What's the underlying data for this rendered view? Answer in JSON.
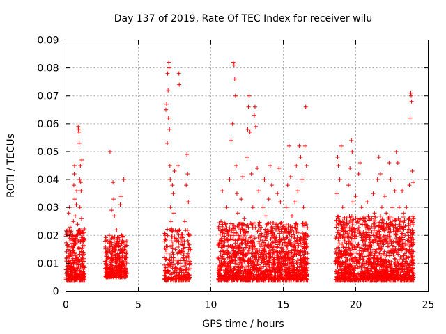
{
  "chart_data": {
    "type": "scatter",
    "title": "Day 137 of 2019, Rate Of TEC Index for receiver wilu",
    "xlabel": "GPS time / hours",
    "ylabel": "ROTI / TECUs",
    "xlim": [
      0,
      25
    ],
    "ylim": [
      0,
      0.09
    ],
    "xticks": [
      "0",
      "5",
      "10",
      "15",
      "20",
      "25"
    ],
    "yticks": [
      "0",
      "0.01",
      "0.02",
      "0.03",
      "0.04",
      "0.05",
      "0.06",
      "0.07",
      "0.08",
      "0.09"
    ],
    "grid": true,
    "marker": "+",
    "color": "#ff0000",
    "series": [
      {
        "name": "ROTI",
        "points": [
          [
            0.05,
            0.012
          ],
          [
            0.1,
            0.008
          ],
          [
            0.12,
            0.015
          ],
          [
            0.15,
            0.022
          ],
          [
            0.18,
            0.006
          ],
          [
            0.2,
            0.028
          ],
          [
            0.22,
            0.01
          ],
          [
            0.25,
            0.03
          ],
          [
            0.28,
            0.018
          ],
          [
            0.3,
            0.023
          ],
          [
            0.32,
            0.007
          ],
          [
            0.35,
            0.013
          ],
          [
            0.38,
            0.009
          ],
          [
            0.4,
            0.016
          ],
          [
            0.42,
            0.005
          ],
          [
            0.45,
            0.011
          ],
          [
            0.48,
            0.02
          ],
          [
            0.5,
            0.014
          ],
          [
            0.52,
            0.025
          ],
          [
            0.55,
            0.038
          ],
          [
            0.58,
            0.042
          ],
          [
            0.6,
            0.045
          ],
          [
            0.62,
            0.033
          ],
          [
            0.65,
            0.027
          ],
          [
            0.68,
            0.019
          ],
          [
            0.7,
            0.008
          ],
          [
            0.72,
            0.031
          ],
          [
            0.75,
            0.036
          ],
          [
            0.78,
            0.012
          ],
          [
            0.8,
            0.006
          ],
          [
            0.82,
            0.024
          ],
          [
            0.85,
            0.059
          ],
          [
            0.87,
            0.058
          ],
          [
            0.9,
            0.057
          ],
          [
            0.92,
            0.053
          ],
          [
            0.95,
            0.04
          ],
          [
            0.97,
            0.03
          ],
          [
            1.0,
            0.045
          ],
          [
            1.02,
            0.039
          ],
          [
            1.05,
            0.036
          ],
          [
            1.08,
            0.026
          ],
          [
            1.1,
            0.047
          ],
          [
            1.12,
            0.018
          ],
          [
            1.15,
            0.01
          ],
          [
            1.18,
            0.006
          ],
          [
            1.2,
            0.014
          ],
          [
            1.22,
            0.009
          ],
          [
            1.25,
            0.021
          ],
          [
            2.75,
            0.01
          ],
          [
            2.8,
            0.014
          ],
          [
            2.85,
            0.008
          ],
          [
            2.9,
            0.018
          ],
          [
            2.95,
            0.012
          ],
          [
            3.0,
            0.02
          ],
          [
            3.05,
            0.05
          ],
          [
            3.1,
            0.016
          ],
          [
            3.15,
            0.029
          ],
          [
            3.2,
            0.011
          ],
          [
            3.25,
            0.039
          ],
          [
            3.3,
            0.033
          ],
          [
            3.35,
            0.027
          ],
          [
            3.4,
            0.015
          ],
          [
            3.45,
            0.009
          ],
          [
            3.5,
            0.022
          ],
          [
            3.55,
            0.013
          ],
          [
            3.6,
            0.007
          ],
          [
            3.65,
            0.017
          ],
          [
            3.7,
            0.012
          ],
          [
            3.75,
            0.031
          ],
          [
            3.8,
            0.034
          ],
          [
            3.85,
            0.02
          ],
          [
            3.9,
            0.01
          ],
          [
            3.95,
            0.014
          ],
          [
            4.0,
            0.04
          ],
          [
            4.05,
            0.008
          ],
          [
            4.1,
            0.016
          ],
          [
            4.15,
            0.012
          ],
          [
            4.2,
            0.018
          ],
          [
            6.8,
            0.012
          ],
          [
            6.85,
            0.02
          ],
          [
            6.9,
            0.065
          ],
          [
            6.95,
            0.067
          ],
          [
            7.0,
            0.053
          ],
          [
            7.02,
            0.078
          ],
          [
            7.05,
            0.072
          ],
          [
            7.08,
            0.062
          ],
          [
            7.1,
            0.082
          ],
          [
            7.12,
            0.08
          ],
          [
            7.15,
            0.058
          ],
          [
            7.18,
            0.045
          ],
          [
            7.2,
            0.04
          ],
          [
            7.22,
            0.03
          ],
          [
            7.25,
            0.025
          ],
          [
            7.28,
            0.018
          ],
          [
            7.3,
            0.012
          ],
          [
            7.35,
            0.038
          ],
          [
            7.4,
            0.035
          ],
          [
            7.45,
            0.028
          ],
          [
            7.5,
            0.043
          ],
          [
            7.55,
            0.015
          ],
          [
            7.6,
            0.008
          ],
          [
            7.7,
            0.01
          ],
          [
            7.75,
            0.045
          ],
          [
            7.8,
            0.078
          ],
          [
            7.82,
            0.074
          ],
          [
            7.85,
            0.022
          ],
          [
            7.9,
            0.014
          ],
          [
            8.0,
            0.018
          ],
          [
            8.1,
            0.012
          ],
          [
            8.2,
            0.025
          ],
          [
            8.3,
            0.038
          ],
          [
            8.35,
            0.049
          ],
          [
            8.4,
            0.042
          ],
          [
            8.45,
            0.032
          ],
          [
            8.5,
            0.02
          ],
          [
            8.55,
            0.01
          ],
          [
            8.6,
            0.015
          ],
          [
            10.5,
            0.008
          ],
          [
            10.6,
            0.018
          ],
          [
            10.7,
            0.025
          ],
          [
            10.8,
            0.036
          ],
          [
            10.9,
            0.01
          ],
          [
            11.0,
            0.022
          ],
          [
            11.1,
            0.03
          ],
          [
            11.2,
            0.014
          ],
          [
            11.3,
            0.04
          ],
          [
            11.4,
            0.054
          ],
          [
            11.5,
            0.06
          ],
          [
            11.55,
            0.082
          ],
          [
            11.6,
            0.081
          ],
          [
            11.65,
            0.076
          ],
          [
            11.7,
            0.07
          ],
          [
            11.75,
            0.045
          ],
          [
            11.8,
            0.035
          ],
          [
            11.85,
            0.028
          ],
          [
            11.9,
            0.02
          ],
          [
            12.0,
            0.012
          ],
          [
            12.1,
            0.033
          ],
          [
            12.2,
            0.041
          ],
          [
            12.3,
            0.026
          ],
          [
            12.4,
            0.018
          ],
          [
            12.5,
            0.048
          ],
          [
            12.55,
            0.058
          ],
          [
            12.6,
            0.066
          ],
          [
            12.65,
            0.07
          ],
          [
            12.7,
            0.057
          ],
          [
            12.8,
            0.042
          ],
          [
            12.9,
            0.03
          ],
          [
            13.0,
            0.063
          ],
          [
            13.05,
            0.066
          ],
          [
            13.1,
            0.059
          ],
          [
            13.2,
            0.044
          ],
          [
            13.3,
            0.036
          ],
          [
            13.4,
            0.022
          ],
          [
            13.5,
            0.014
          ],
          [
            13.6,
            0.03
          ],
          [
            13.7,
            0.04
          ],
          [
            13.8,
            0.027
          ],
          [
            13.9,
            0.016
          ],
          [
            14.0,
            0.033
          ],
          [
            14.1,
            0.045
          ],
          [
            14.2,
            0.038
          ],
          [
            14.3,
            0.021
          ],
          [
            14.4,
            0.012
          ],
          [
            14.5,
            0.024
          ],
          [
            14.6,
            0.035
          ],
          [
            14.7,
            0.044
          ],
          [
            14.8,
            0.032
          ],
          [
            14.9,
            0.018
          ],
          [
            15.0,
            0.01
          ],
          [
            15.1,
            0.022
          ],
          [
            15.2,
            0.03
          ],
          [
            15.3,
            0.038
          ],
          [
            15.4,
            0.052
          ],
          [
            15.5,
            0.041
          ],
          [
            15.6,
            0.027
          ],
          [
            15.7,
            0.015
          ],
          [
            15.8,
            0.032
          ],
          [
            15.9,
            0.045
          ],
          [
            16.0,
            0.036
          ],
          [
            16.1,
            0.052
          ],
          [
            16.2,
            0.048
          ],
          [
            16.3,
            0.04
          ],
          [
            16.4,
            0.03
          ],
          [
            16.5,
            0.052
          ],
          [
            16.55,
            0.066
          ],
          [
            16.6,
            0.045
          ],
          [
            16.65,
            0.02
          ],
          [
            16.7,
            0.01
          ],
          [
            18.6,
            0.01
          ],
          [
            18.7,
            0.035
          ],
          [
            18.75,
            0.048
          ],
          [
            18.8,
            0.045
          ],
          [
            18.9,
            0.04
          ],
          [
            19.0,
            0.052
          ],
          [
            19.1,
            0.03
          ],
          [
            19.2,
            0.018
          ],
          [
            19.3,
            0.012
          ],
          [
            19.4,
            0.024
          ],
          [
            19.5,
            0.038
          ],
          [
            19.6,
            0.044
          ],
          [
            19.7,
            0.054
          ],
          [
            19.75,
            0.05
          ],
          [
            19.8,
            0.032
          ],
          [
            19.9,
            0.021
          ],
          [
            20.0,
            0.034
          ],
          [
            20.1,
            0.026
          ],
          [
            20.2,
            0.042
          ],
          [
            20.3,
            0.046
          ],
          [
            20.4,
            0.03
          ],
          [
            20.5,
            0.018
          ],
          [
            20.6,
            0.01
          ],
          [
            20.7,
            0.024
          ],
          [
            20.8,
            0.032
          ],
          [
            20.9,
            0.02
          ],
          [
            21.0,
            0.014
          ],
          [
            21.1,
            0.026
          ],
          [
            21.2,
            0.035
          ],
          [
            21.3,
            0.028
          ],
          [
            21.4,
            0.018
          ],
          [
            21.5,
            0.04
          ],
          [
            21.6,
            0.048
          ],
          [
            21.7,
            0.042
          ],
          [
            21.8,
            0.03
          ],
          [
            21.9,
            0.022
          ],
          [
            22.0,
            0.034
          ],
          [
            22.1,
            0.028
          ],
          [
            22.2,
            0.016
          ],
          [
            22.3,
            0.046
          ],
          [
            22.4,
            0.04
          ],
          [
            22.5,
            0.03
          ],
          [
            22.6,
            0.022
          ],
          [
            22.7,
            0.036
          ],
          [
            22.8,
            0.05
          ],
          [
            22.9,
            0.046
          ],
          [
            23.0,
            0.03
          ],
          [
            23.1,
            0.018
          ],
          [
            23.2,
            0.036
          ],
          [
            23.3,
            0.028
          ],
          [
            23.4,
            0.02
          ],
          [
            23.5,
            0.03
          ],
          [
            23.6,
            0.022
          ],
          [
            23.7,
            0.038
          ],
          [
            23.75,
            0.062
          ],
          [
            23.8,
            0.071
          ],
          [
            23.82,
            0.07
          ],
          [
            23.85,
            0.068
          ],
          [
            23.9,
            0.043
          ],
          [
            23.95,
            0.039
          ],
          [
            24.0,
            0.026
          ]
        ],
        "bands": [
          {
            "x": [
              0,
              1.3
            ],
            "y": [
              0.004,
              0.02
            ],
            "n": 320
          },
          {
            "x": [
              2.7,
              4.2
            ],
            "y": [
              0.005,
              0.018
            ],
            "n": 340
          },
          {
            "x": [
              6.8,
              8.6
            ],
            "y": [
              0.004,
              0.02
            ],
            "n": 240
          },
          {
            "x": [
              10.5,
              16.7
            ],
            "y": [
              0.004,
              0.022
            ],
            "n": 1500
          },
          {
            "x": [
              18.6,
              24.0
            ],
            "y": [
              0.004,
              0.024
            ],
            "n": 1400
          }
        ]
      }
    ]
  }
}
